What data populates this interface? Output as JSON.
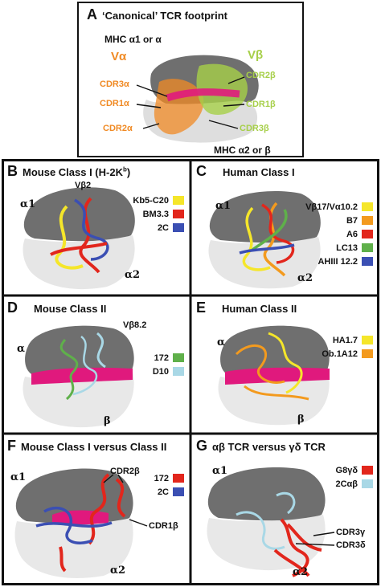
{
  "colors": {
    "va": "#f08a24",
    "vb": "#a6cf48",
    "hotpink": "#e0197d",
    "yellow": "#f5e62a",
    "red": "#e2261c",
    "blue": "#3b4fb3",
    "orange": "#f39a1e",
    "green": "#5fb04a",
    "lightblue": "#a9d8e6",
    "darkgrey": "#6f6f6f",
    "lightgrey": "#e4e4e4"
  },
  "panelA": {
    "letter": "A",
    "title": "‘Canonical’ TCR footprint",
    "mhc_top": "MHC α1 or α",
    "mhc_bottom": "MHC α2 or β",
    "va": "Vα",
    "vb": "Vβ",
    "cdr3a": "CDR3α",
    "cdr1a": "CDR1α",
    "cdr2a": "CDR2α",
    "cdr2b": "CDR2β",
    "cdr1b": "CDR1β",
    "cdr3b": "CDR3β"
  },
  "panelB": {
    "letter": "B",
    "title_main": "Mouse Class I (H-2K",
    "title_sup": "b",
    "title_end": ")",
    "a1": "α1",
    "a2": "α2",
    "vb2": "Vβ2",
    "legend": [
      "Kb5-C20",
      "BM3.3",
      "2C"
    ]
  },
  "panelC": {
    "letter": "C",
    "title": "Human Class I",
    "a1": "α1",
    "a2": "α2",
    "legend": [
      "Vβ17/Vα10.2",
      "B7",
      "A6",
      "LC13",
      "AHIII 12.2"
    ]
  },
  "panelD": {
    "letter": "D",
    "title": "Mouse Class II",
    "a": "α",
    "b": "β",
    "vb": "Vβ8.2",
    "legend": [
      "172",
      "D10"
    ]
  },
  "panelE": {
    "letter": "E",
    "title": "Human Class II",
    "a": "α",
    "b": "β",
    "legend": [
      "HA1.7",
      "Ob.1A12"
    ]
  },
  "panelF": {
    "letter": "F",
    "title": "Mouse Class I versus Class II",
    "a1": "α1",
    "a2": "α2",
    "cdr2b": "CDR2β",
    "cdr1b": "CDR1β",
    "legend": [
      "172",
      "2C"
    ]
  },
  "panelG": {
    "letter": "G",
    "title": "αβ TCR versus γδ TCR",
    "a1": "α1",
    "a2": "α2",
    "cdr3g": "CDR3γ",
    "cdr3d": "CDR3δ",
    "legend": [
      "G8γδ",
      "2Cαβ"
    ]
  }
}
